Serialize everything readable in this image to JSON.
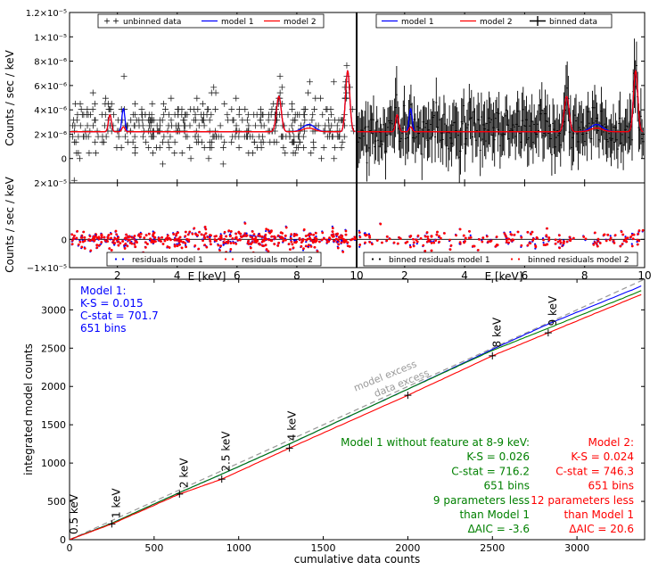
{
  "colors": {
    "model1": "#0000ff",
    "model2": "#ff0000",
    "data": "#000000",
    "no_feature": "#008000",
    "diagonal": "#999999",
    "excess_text": "#999999"
  },
  "chart_data": [
    {
      "id": "top-left",
      "type": "line",
      "ylabel": "Counts / sec / keV",
      "x_range": [
        0.4,
        10
      ],
      "ylim": [
        -2e-06,
        1.2e-05
      ],
      "ytick_labels": [
        "0",
        "2×10⁻⁶",
        "4×10⁻⁶",
        "6×10⁻⁶",
        "8×10⁻⁶",
        "1×10⁻⁵",
        "1.2×10⁻⁵"
      ],
      "ytick_values": [
        0,
        2e-06,
        4e-06,
        6e-06,
        8e-06,
        1e-05,
        1.2e-05
      ],
      "legend": [
        "unbinned data",
        "model 1",
        "model 2"
      ],
      "continuum": 2.2e-06,
      "lines": [
        {
          "center": 1.75,
          "amp_model1": 1.4e-06,
          "amp_model2": 1.4e-06,
          "width": 0.05
        },
        {
          "center": 2.2,
          "amp_model1": 1.9e-06,
          "amp_model2": 4e-07,
          "width": 0.05
        },
        {
          "center": 7.4,
          "amp_model1": 2.9e-06,
          "amp_model2": 2.9e-06,
          "width": 0.08
        },
        {
          "center": 8.4,
          "amp_model1": 6e-07,
          "amp_model2": 3e-07,
          "width": 0.2
        },
        {
          "center": 9.7,
          "amp_model1": 5e-06,
          "amp_model2": 5e-06,
          "width": 0.07
        }
      ]
    },
    {
      "id": "top-right",
      "type": "line",
      "x_range": [
        0.4,
        10
      ],
      "ylim": [
        -2e-06,
        1.2e-05
      ],
      "legend": [
        "model 1",
        "model 2",
        "binned data"
      ]
    },
    {
      "id": "bottom-left-residuals",
      "type": "scatter",
      "ylabel": "Counts / sec / keV",
      "xlabel": "E [keV]",
      "x_range": [
        0.4,
        10
      ],
      "ylim": [
        -1e-05,
        2e-05
      ],
      "ytick_labels": [
        "−1×10⁻⁵",
        "0",
        "2×10⁻⁵"
      ],
      "ytick_values": [
        -1e-05,
        0,
        2e-05
      ],
      "legend": [
        "residuals model 1",
        "residuals model 2"
      ]
    },
    {
      "id": "bottom-right-residuals",
      "type": "scatter",
      "xlabel": "E [keV]",
      "x_range": [
        0.4,
        10
      ],
      "ylim": [
        -1e-05,
        2e-05
      ],
      "legend": [
        "binned residuals model 1",
        "binned residuals model 2"
      ]
    },
    {
      "id": "cumulative",
      "type": "line",
      "xlabel": "cumulative data counts",
      "ylabel": "integrated model counts",
      "xlim": [
        0,
        3400
      ],
      "ylim": [
        0,
        3400
      ],
      "xticks": [
        0,
        500,
        1000,
        1500,
        2000,
        2500,
        3000
      ],
      "yticks": [
        0,
        500,
        1000,
        1500,
        2000,
        2500,
        3000
      ],
      "series": [
        {
          "name": "model 1",
          "x": [
            0,
            250,
            650,
            900,
            1300,
            2000,
            2500,
            2830,
            3380
          ],
          "y": [
            0,
            215,
            615,
            855,
            1250,
            1965,
            2485,
            2815,
            3310
          ]
        },
        {
          "name": "model 1 without feature at 8-9 keV",
          "x": [
            0,
            250,
            650,
            900,
            1300,
            2000,
            2500,
            2830,
            3380
          ],
          "y": [
            0,
            215,
            615,
            855,
            1250,
            1965,
            2470,
            2760,
            3250
          ]
        },
        {
          "name": "model 2",
          "x": [
            0,
            250,
            650,
            900,
            1300,
            2000,
            2500,
            2830,
            3380
          ],
          "y": [
            0,
            205,
            595,
            790,
            1195,
            1885,
            2400,
            2700,
            3200
          ]
        }
      ],
      "energy_labels": [
        {
          "text": "0.5 keV",
          "x": 0,
          "y": 0
        },
        {
          "text": "1 keV",
          "x": 250,
          "y": 210
        },
        {
          "text": "2 keV",
          "x": 650,
          "y": 605
        },
        {
          "text": "2.5 keV",
          "x": 900,
          "y": 820
        },
        {
          "text": "4 keV",
          "x": 1290,
          "y": 1220
        },
        {
          "text": "8 keV",
          "x": 2500,
          "y": 2440
        },
        {
          "text": "9 keV",
          "x": 2830,
          "y": 2720
        }
      ],
      "annotations": {
        "model_excess": "model excess",
        "data_excess": "data excess"
      },
      "stats_model1": [
        "Model 1:",
        "K-S = 0.015",
        "C-stat = 701.7",
        "651 bins"
      ],
      "stats_nofeature": [
        "Model 1 without feature at 8-9 keV:",
        "K-S = 0.026",
        "C-stat = 716.2",
        "651 bins",
        "9 parameters less",
        "than Model 1",
        "ΔAIC = -3.6"
      ],
      "stats_model2": [
        "Model 2:",
        "K-S = 0.024",
        "C-stat = 746.3",
        "651 bins",
        "12 parameters less",
        "than Model 1",
        "ΔAIC = 20.6"
      ]
    }
  ]
}
